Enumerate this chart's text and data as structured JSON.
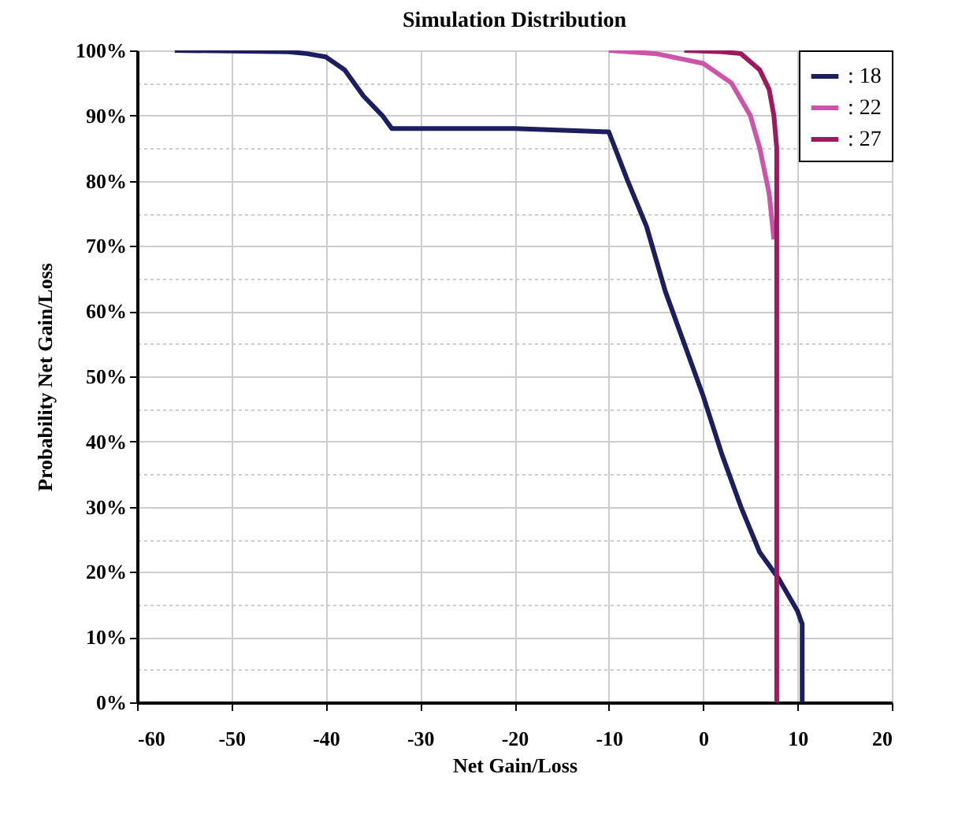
{
  "chart_data": {
    "type": "line",
    "title": "Simulation Distribution",
    "xlabel": "Net Gain/Loss",
    "ylabel": "Probability Net Gain/Loss",
    "xlim": [
      -60,
      20
    ],
    "xticks": [
      -60,
      -50,
      -40,
      -30,
      -20,
      -10,
      0,
      10,
      20
    ],
    "ylim": [
      0,
      100
    ],
    "yticks": [
      {
        "value": 0,
        "label": "0%"
      },
      {
        "value": 5,
        "label": null
      },
      {
        "value": 10,
        "label": "10%"
      },
      {
        "value": 15,
        "label": null
      },
      {
        "value": 20,
        "label": "20%"
      },
      {
        "value": 25,
        "label": null
      },
      {
        "value": 30,
        "label": "30%"
      },
      {
        "value": 35,
        "label": null
      },
      {
        "value": 40,
        "label": "40%"
      },
      {
        "value": 45,
        "label": null
      },
      {
        "value": 50,
        "label": "50%"
      },
      {
        "value": 55,
        "label": null
      },
      {
        "value": 60,
        "label": "60%"
      },
      {
        "value": 65,
        "label": null
      },
      {
        "value": 70,
        "label": "70%"
      },
      {
        "value": 75,
        "label": null
      },
      {
        "value": 80,
        "label": "80%"
      },
      {
        "value": 85,
        "label": null
      },
      {
        "value": 90,
        "label": "90%"
      },
      {
        "value": 95,
        "label": null
      },
      {
        "value": 100,
        "label": "100%"
      }
    ],
    "grid": true,
    "legend": "top right",
    "series": [
      {
        "name": ": 18",
        "color": "#1b1f5f",
        "x": [
          -56,
          -44,
          -42,
          -40,
          -38,
          -36,
          -34,
          -33,
          -20,
          -10,
          -8,
          -6,
          -4,
          -2,
          0,
          2,
          4,
          6,
          8,
          10,
          10.5,
          10.5
        ],
        "values": [
          100,
          99.8,
          99.5,
          99,
          97,
          93,
          90,
          88,
          88,
          87.5,
          80,
          73,
          63,
          55,
          47,
          38,
          30,
          23,
          19,
          14,
          12,
          0
        ]
      },
      {
        "name": ": 22",
        "color": "#cc55aa",
        "x": [
          -10,
          -5,
          0,
          3,
          5,
          6,
          7,
          7.5
        ],
        "values": [
          100,
          99.5,
          98,
          95,
          90,
          85,
          78,
          71
        ]
      },
      {
        "name": ": 27",
        "color": "#9b1c5e",
        "x": [
          -2,
          2,
          4,
          6,
          7,
          7.5,
          7.8,
          7.8
        ],
        "values": [
          100,
          99.8,
          99.5,
          97,
          94,
          90,
          85,
          0
        ]
      }
    ]
  }
}
